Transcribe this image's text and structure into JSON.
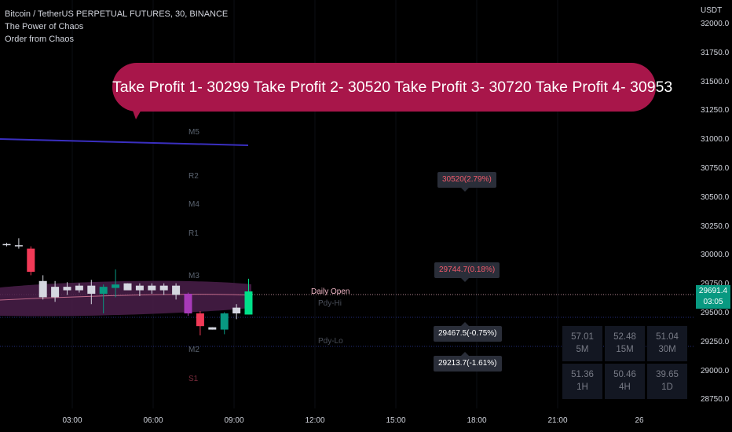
{
  "legend": {
    "symbol": "Bitcoin / TetherUS PERPETUAL FUTURES, 30, BINANCE",
    "indicator_1": "The Power of Chaos",
    "indicator_2": "Order from Chaos"
  },
  "callout": {
    "text": "Take Profit 1-  30299 Take Profit 2- 30520 Take Profit 3- 30720 Take Profit 4- 30953",
    "color": "#a8164a"
  },
  "pivots": [
    "M5",
    "R2",
    "M4",
    "R1",
    "M3",
    "M2",
    "S1"
  ],
  "sessions": {
    "prev_high": "Pdy-Hi",
    "prev_low": "Pdy-Lo"
  },
  "daily_open_label": "Daily Open",
  "price_tags": [
    {
      "label": "30520(2.79%)",
      "tone": "up"
    },
    {
      "label": "29744.7(0.18%)",
      "tone": "up"
    },
    {
      "label": "29467.5(-0.75%)",
      "tone": "down"
    },
    {
      "label": "29213.7(-1.61%)",
      "tone": "down"
    }
  ],
  "yaxis": {
    "unit": "USDT",
    "ticks": [
      "32000.0",
      "31750.0",
      "31500.0",
      "31250.0",
      "31000.0",
      "30750.0",
      "30500.0",
      "30250.0",
      "30000.0",
      "29750.0",
      "29500.0",
      "29250.0",
      "29000.0",
      "28750.0"
    ]
  },
  "xaxis": {
    "ticks": [
      "03:00",
      "06:00",
      "09:00",
      "12:00",
      "15:00",
      "18:00",
      "21:00",
      "26"
    ]
  },
  "last_price": {
    "price": "29691.4",
    "countdown": "03:05",
    "color": "#089981"
  },
  "rsi_table": [
    {
      "value": "57.01",
      "timeframe": "5M"
    },
    {
      "value": "52.48",
      "timeframe": "15M"
    },
    {
      "value": "51.04",
      "timeframe": "30M"
    },
    {
      "value": "51.36",
      "timeframe": "1H"
    },
    {
      "value": "50.46",
      "timeframe": "4H"
    },
    {
      "value": "39.65",
      "timeframe": "1D"
    }
  ],
  "chart_data": {
    "type": "candlestick",
    "y_unit": "USDT",
    "ylim": [
      28750,
      32000
    ],
    "candles": [
      {
        "o": 30100,
        "h": 30110,
        "l": 30080,
        "c": 30090
      },
      {
        "o": 30080,
        "h": 30150,
        "l": 30060,
        "c": 30090
      },
      {
        "o": 30060,
        "h": 30080,
        "l": 29830,
        "c": 29860
      },
      {
        "o": 29780,
        "h": 29830,
        "l": 29620,
        "c": 29640
      },
      {
        "o": 29640,
        "h": 29780,
        "l": 29600,
        "c": 29730
      },
      {
        "o": 29730,
        "h": 29770,
        "l": 29660,
        "c": 29700
      },
      {
        "o": 29700,
        "h": 29760,
        "l": 29680,
        "c": 29740
      },
      {
        "o": 29740,
        "h": 29790,
        "l": 29580,
        "c": 29670
      },
      {
        "o": 29670,
        "h": 29750,
        "l": 29500,
        "c": 29730
      },
      {
        "o": 29720,
        "h": 29880,
        "l": 29640,
        "c": 29750
      },
      {
        "o": 29760,
        "h": 29760,
        "l": 29700,
        "c": 29700
      },
      {
        "o": 29700,
        "h": 29760,
        "l": 29650,
        "c": 29740
      },
      {
        "o": 29740,
        "h": 29760,
        "l": 29670,
        "c": 29700
      },
      {
        "o": 29700,
        "h": 29760,
        "l": 29660,
        "c": 29740
      },
      {
        "o": 29740,
        "h": 29760,
        "l": 29620,
        "c": 29660
      },
      {
        "o": 29670,
        "h": 29680,
        "l": 29480,
        "c": 29500
      },
      {
        "o": 29500,
        "h": 29520,
        "l": 29310,
        "c": 29390
      },
      {
        "o": 29380,
        "h": 29380,
        "l": 29360,
        "c": 29360
      },
      {
        "o": 29360,
        "h": 29510,
        "l": 29320,
        "c": 29500
      },
      {
        "o": 29500,
        "h": 29580,
        "l": 29450,
        "c": 29550
      },
      {
        "o": 29490,
        "h": 29800,
        "l": 29490,
        "c": 29690
      }
    ],
    "moving_average": {
      "x_start": "",
      "values": [
        31000,
        30970
      ]
    }
  }
}
